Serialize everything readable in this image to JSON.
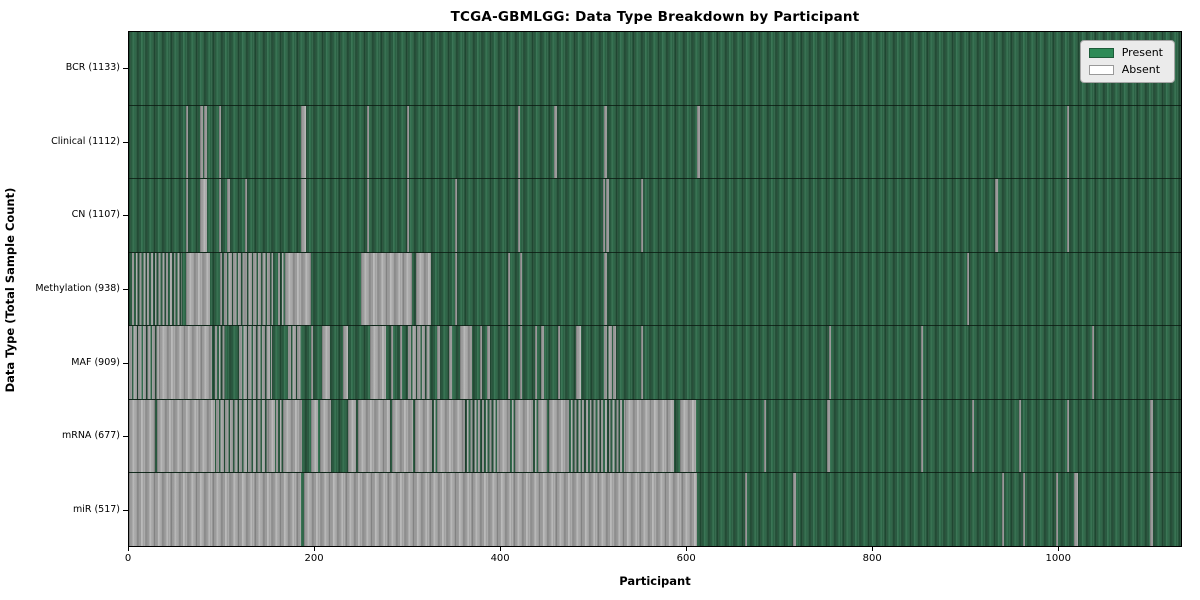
{
  "chart_data": {
    "type": "heatmap",
    "title": "TCGA-GBMLGG: Data Type Breakdown by Participant",
    "xlabel": "Participant",
    "ylabel": "Data Type (Total Sample Count)",
    "x_ticks": [
      0,
      200,
      400,
      600,
      800,
      1000
    ],
    "x_max": 1133,
    "grid": false,
    "legend_position": "upper right",
    "legend": [
      {
        "label": "Present",
        "color": "#2E8B57"
      },
      {
        "label": "Absent",
        "color": "#FFFFFF"
      }
    ],
    "present_color": "#2E8B57",
    "absent_color": "#FFFFFF",
    "rows": [
      {
        "name": "BCR",
        "label": "BCR (1133)",
        "total": 1133,
        "absent": []
      },
      {
        "name": "Clinical",
        "label": "Clinical (1112)",
        "total": 1112,
        "absent": [
          [
            61,
            63.5,
            "s"
          ],
          [
            77,
            79.5,
            "s"
          ],
          [
            81,
            83.5,
            "s"
          ],
          [
            97,
            99.5,
            "s"
          ],
          [
            185,
            191,
            "s"
          ],
          [
            256,
            258.5,
            "s"
          ],
          [
            299,
            302,
            "s"
          ],
          [
            419,
            421.5,
            "s"
          ],
          [
            458,
            460.5,
            "s"
          ],
          [
            512,
            514.5,
            "s"
          ],
          [
            612,
            614.5,
            "s"
          ],
          [
            1010,
            1012.5,
            "s"
          ]
        ]
      },
      {
        "name": "CN",
        "label": "CN (1107)",
        "total": 1107,
        "absent": [
          [
            61,
            63.5,
            "s"
          ],
          [
            77,
            83.5,
            "s"
          ],
          [
            97,
            99.5,
            "s"
          ],
          [
            106,
            108.5,
            "s"
          ],
          [
            125,
            127.5,
            "s"
          ],
          [
            185,
            191,
            "s"
          ],
          [
            256,
            258.5,
            "s"
          ],
          [
            299,
            302,
            "s"
          ],
          [
            351,
            353.5,
            "s"
          ],
          [
            419,
            421.5,
            "s"
          ],
          [
            510,
            512.5,
            "s"
          ],
          [
            514,
            516.5,
            "s"
          ],
          [
            551,
            553.5,
            "s"
          ],
          [
            933,
            935.5,
            "s"
          ],
          [
            1010,
            1012.5,
            "s"
          ]
        ]
      },
      {
        "name": "Methylation",
        "label": "Methylation (938)",
        "total": 938,
        "absent": [
          [
            3,
            57,
            "h"
          ],
          [
            61,
            87,
            "s"
          ],
          [
            98,
            100.5,
            "s"
          ],
          [
            102,
            124,
            "d"
          ],
          [
            124,
            155,
            "d"
          ],
          [
            160,
            168,
            "h"
          ],
          [
            168,
            196,
            "s"
          ],
          [
            250,
            305,
            "s"
          ],
          [
            309,
            325,
            "s"
          ],
          [
            351,
            353.5,
            "s"
          ],
          [
            408,
            410.5,
            "s"
          ],
          [
            421,
            423.5,
            "s"
          ],
          [
            512,
            514.5,
            "s"
          ],
          [
            902,
            905,
            "s"
          ]
        ]
      },
      {
        "name": "MAF",
        "label": "MAF (909)",
        "total": 909,
        "absent": [
          [
            0,
            32,
            "d"
          ],
          [
            32,
            89,
            "s"
          ],
          [
            93,
            104,
            "h"
          ],
          [
            118,
            154,
            "d"
          ],
          [
            171,
            186,
            "d"
          ],
          [
            196,
            198.5,
            "s"
          ],
          [
            208,
            217,
            "s"
          ],
          [
            230,
            236,
            "s"
          ],
          [
            260,
            277,
            "s"
          ],
          [
            282,
            284.5,
            "s"
          ],
          [
            292,
            294.5,
            "s"
          ],
          [
            300,
            325,
            "d"
          ],
          [
            332,
            334.5,
            "s"
          ],
          [
            345,
            347.5,
            "s"
          ],
          [
            357,
            369,
            "s"
          ],
          [
            378,
            380.5,
            "s"
          ],
          [
            386,
            388.5,
            "s"
          ],
          [
            408,
            410.5,
            "s"
          ],
          [
            421,
            423.5,
            "s"
          ],
          [
            437,
            439.5,
            "s"
          ],
          [
            444,
            446.5,
            "s"
          ],
          [
            462,
            464.5,
            "s"
          ],
          [
            481,
            487,
            "s"
          ],
          [
            512,
            524,
            "d"
          ],
          [
            551,
            553.5,
            "s"
          ],
          [
            754,
            756.5,
            "s"
          ],
          [
            853,
            855.5,
            "s"
          ],
          [
            1037,
            1039.5,
            "s"
          ]
        ]
      },
      {
        "name": "mRNA",
        "label": "mRNA (677)",
        "total": 677,
        "absent": [
          [
            0,
            28,
            "s"
          ],
          [
            30,
            93,
            "s"
          ],
          [
            94,
            150,
            "d"
          ],
          [
            150,
            157,
            "s"
          ],
          [
            158,
            166,
            "h"
          ],
          [
            166,
            186,
            "s"
          ],
          [
            196,
            204,
            "s"
          ],
          [
            206,
            218,
            "s"
          ],
          [
            236,
            245,
            "s"
          ],
          [
            247,
            281,
            "s"
          ],
          [
            283,
            306,
            "s"
          ],
          [
            308,
            324,
            "s"
          ],
          [
            324,
            332,
            "h"
          ],
          [
            332,
            360,
            "s"
          ],
          [
            360,
            380,
            "h"
          ],
          [
            380,
            398,
            "h"
          ],
          [
            398,
            408,
            "s"
          ],
          [
            408,
            416,
            "h"
          ],
          [
            416,
            433,
            "s"
          ],
          [
            433,
            441,
            "h"
          ],
          [
            441,
            450,
            "s"
          ],
          [
            452,
            472,
            "s"
          ],
          [
            472,
            534,
            "h"
          ],
          [
            534,
            587,
            "s"
          ],
          [
            593,
            611,
            "s"
          ],
          [
            684,
            686.5,
            "s"
          ],
          [
            752,
            754.5,
            "s"
          ],
          [
            853,
            855.5,
            "s"
          ],
          [
            908,
            910.5,
            "s"
          ],
          [
            958,
            960.5,
            "s"
          ],
          [
            1010,
            1012.5,
            "s"
          ],
          [
            1100,
            1102.5,
            "s"
          ]
        ]
      },
      {
        "name": "miR",
        "label": "miR (517)",
        "total": 517,
        "absent": [
          [
            0,
            185,
            "s"
          ],
          [
            188,
            612,
            "s"
          ],
          [
            663,
            665.5,
            "s"
          ],
          [
            715,
            718,
            "s"
          ],
          [
            940,
            942.5,
            "s"
          ],
          [
            963,
            965.5,
            "s"
          ],
          [
            998,
            1000.5,
            "s"
          ],
          [
            1018,
            1022,
            "s"
          ],
          [
            1100,
            1102.5,
            "s"
          ]
        ]
      }
    ]
  }
}
